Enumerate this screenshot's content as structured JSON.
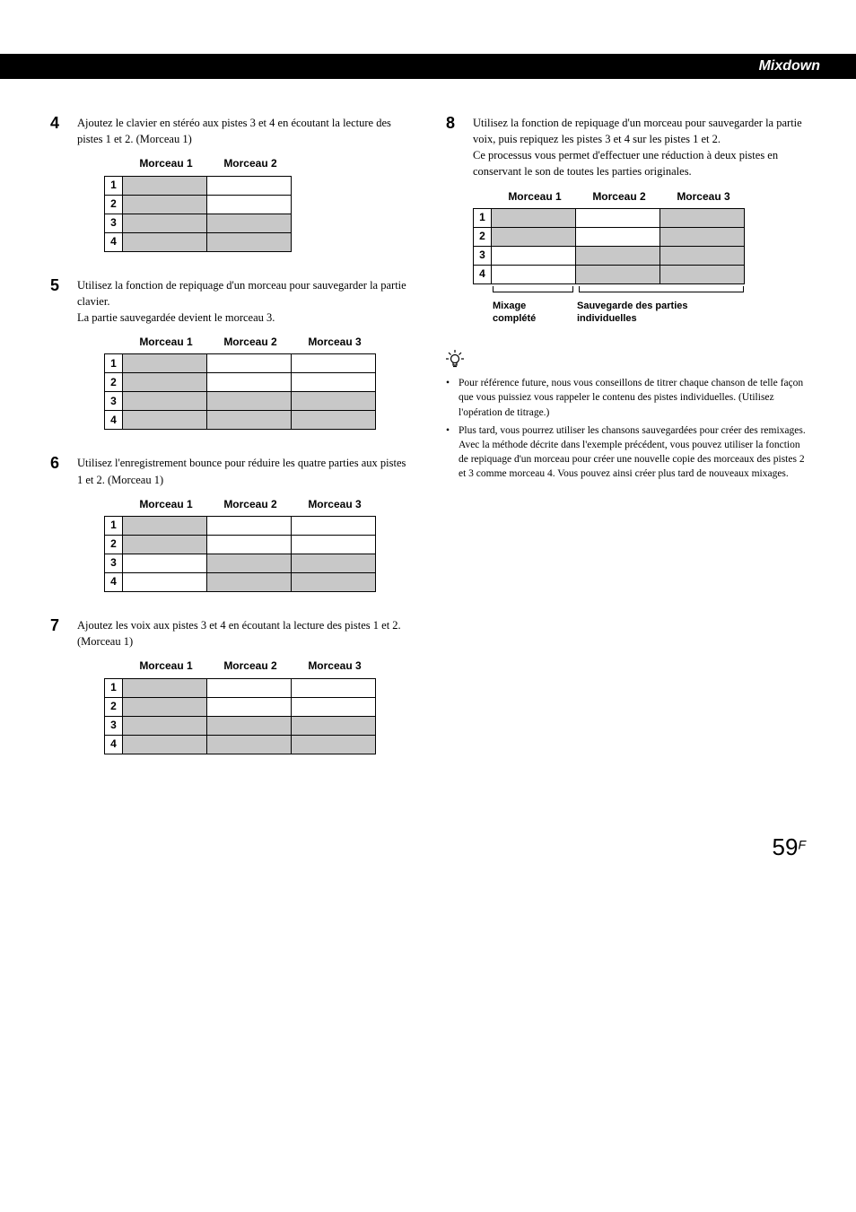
{
  "header": {
    "title": "Mixdown"
  },
  "steps": {
    "s4": {
      "num": "4",
      "text": "Ajoutez le clavier en stéréo aux pistes 3 et 4 en écoutant la lecture des pistes 1 et 2. (Morceau 1)"
    },
    "s5": {
      "num": "5",
      "text1": "Utilisez la fonction de repiquage d'un morceau pour sauvegarder la partie clavier.",
      "text2": "La partie sauvegardée devient le morceau 3."
    },
    "s6": {
      "num": "6",
      "text": "Utilisez l'enregistrement bounce pour réduire les quatre parties aux pistes 1 et 2. (Morceau 1)"
    },
    "s7": {
      "num": "7",
      "text": "Ajoutez les voix aux pistes 3 et 4 en écoutant la lecture des pistes 1 et 2. (Morceau 1)"
    },
    "s8": {
      "num": "8",
      "text1": "Utilisez la fonction de repiquage d'un morceau pour sauvegarder la partie voix, puis repiquez les pistes 3 et 4 sur les pistes 1 et 2.",
      "text2": "Ce processus vous permet d'effectuer une réduction à deux pistes en conservant le son de toutes les parties originales."
    }
  },
  "labels": {
    "m1": "Morceau 1",
    "m2": "Morceau 2",
    "m3": "Morceau 3",
    "r1": "1",
    "r2": "2",
    "r3": "3",
    "r4": "4"
  },
  "captions": {
    "left_l1": "Mixage",
    "left_l2": "complété",
    "right_l1": "Sauvegarde des parties",
    "right_l2": "individuelles"
  },
  "tips": {
    "b1": "Pour référence future, nous vous conseillons de titrer chaque chanson de telle façon que vous puissiez vous rappeler le contenu des pistes individuelles. (Utilisez l'opération de titrage.)",
    "b2a": "Plus tard, vous pourrez utiliser les chansons sauvegardées pour créer des remixages.",
    "b2b": "Avec la méthode décrite dans l'exemple précédent, vous pouvez utiliser  la fonction de repiquage d'un morceau pour créer une nouvelle copie des morceaux des pistes 2 et 3 comme morceau 4. Vous pouvez ainsi créer plus tard de nouveaux mixages."
  },
  "page": {
    "num": "59",
    "suffix": "F"
  },
  "tables": {
    "t4": {
      "cols": 2,
      "shaded": [
        [
          0,
          0
        ],
        [
          1,
          0
        ],
        [
          2,
          0
        ],
        [
          2,
          1
        ],
        [
          3,
          0
        ],
        [
          3,
          1
        ]
      ]
    },
    "t5": {
      "cols": 3,
      "shaded": [
        [
          0,
          0
        ],
        [
          1,
          0
        ],
        [
          2,
          0
        ],
        [
          2,
          1
        ],
        [
          2,
          2
        ],
        [
          3,
          0
        ],
        [
          3,
          1
        ],
        [
          3,
          2
        ]
      ]
    },
    "t6": {
      "cols": 3,
      "shaded": [
        [
          0,
          0
        ],
        [
          1,
          0
        ],
        [
          2,
          1
        ],
        [
          2,
          2
        ],
        [
          3,
          1
        ],
        [
          3,
          2
        ]
      ]
    },
    "t7": {
      "cols": 3,
      "shaded": [
        [
          0,
          0
        ],
        [
          1,
          0
        ],
        [
          2,
          0
        ],
        [
          2,
          1
        ],
        [
          2,
          2
        ],
        [
          3,
          0
        ],
        [
          3,
          1
        ],
        [
          3,
          2
        ]
      ]
    },
    "t8": {
      "cols": 3,
      "shaded": [
        [
          0,
          0
        ],
        [
          0,
          2
        ],
        [
          1,
          0
        ],
        [
          1,
          2
        ],
        [
          2,
          1
        ],
        [
          2,
          2
        ],
        [
          3,
          1
        ],
        [
          3,
          2
        ]
      ]
    }
  },
  "colors": {
    "shade": "#c8c8c8",
    "text": "#000000",
    "bg": "#ffffff",
    "header_bg": "#000000",
    "header_text": "#ffffff"
  }
}
